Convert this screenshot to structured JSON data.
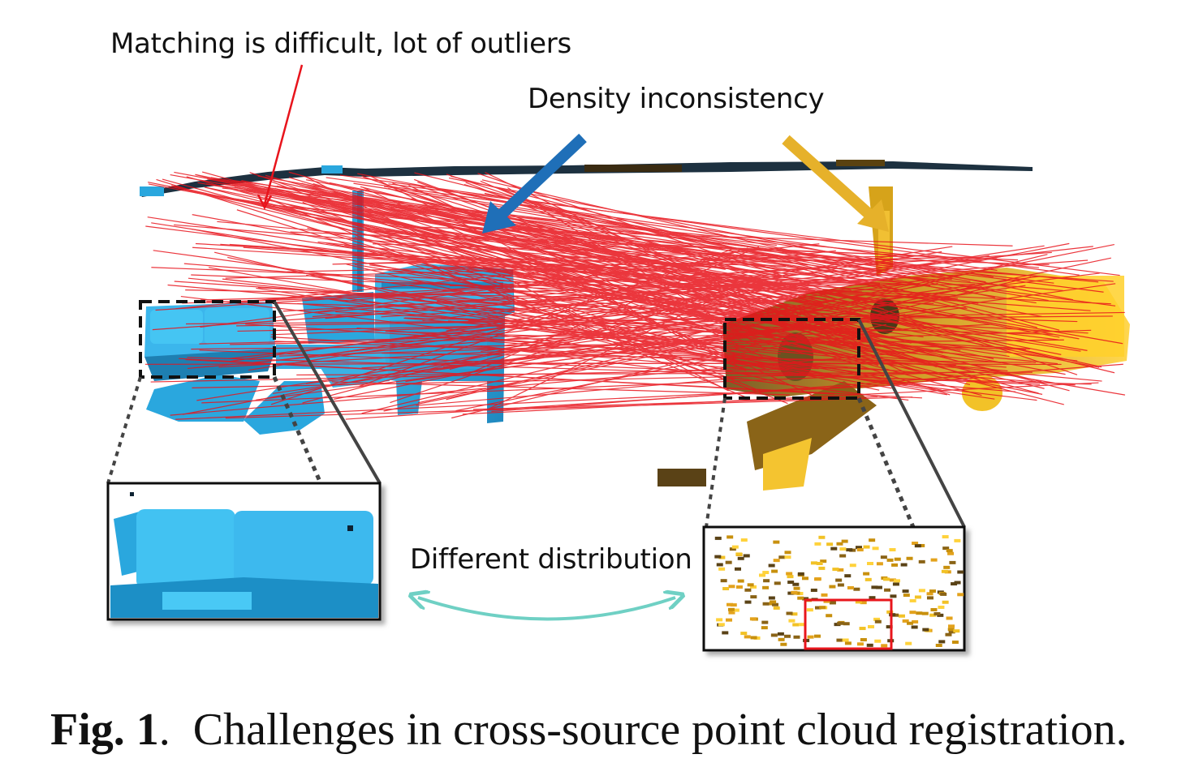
{
  "figure": {
    "annotations": {
      "matching": "Matching is difficult, lot of outliers",
      "density": "Density inconsistency",
      "distribution": "Different distribution"
    },
    "colors": {
      "matches": "#e8141c",
      "source_cloud": "#2aa7de",
      "target_cloud": "#e3a21a",
      "density_arrow_blue": "#1f6fb8",
      "density_arrow_gold": "#e6b12a",
      "distribution_arrow": "#6fd0c4",
      "highlight_box": "#e8141c"
    }
  },
  "caption": {
    "label": "Fig. 1",
    "separator": ".",
    "text": "Challenges in cross-source point cloud registration."
  }
}
